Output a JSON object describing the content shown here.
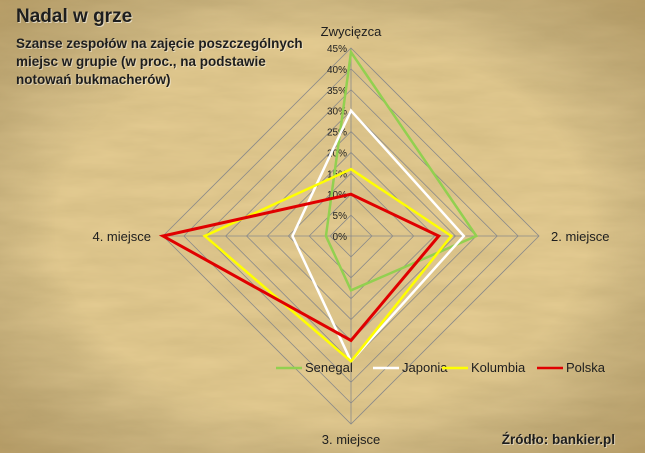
{
  "title": "Nadal w grze",
  "subtitle": "Szanse zespołów na zajęcie poszczególnych miejsc w grupie (w proc., na podstawie notowań bukmacherów)",
  "source": "Źródło: bankier.pl",
  "chart_data": {
    "type": "radar",
    "axes": [
      "Zwycięzca",
      "2. miejsce",
      "3. miejsce",
      "4. miejsce"
    ],
    "ticks": [
      "0%",
      "5%",
      "10%",
      "15%",
      "20%",
      "25%",
      "30%",
      "35%",
      "40%",
      "45%"
    ],
    "rmax": 45,
    "grid": true,
    "legend_position": "bottom",
    "series": [
      {
        "name": "Senegal",
        "color": "#92d050",
        "values": [
          44,
          30,
          13,
          6
        ]
      },
      {
        "name": "Japonia",
        "color": "#ffffff",
        "values": [
          30,
          27,
          30,
          14
        ]
      },
      {
        "name": "Kolumbia",
        "color": "#ffff00",
        "values": [
          16,
          24,
          30,
          35
        ]
      },
      {
        "name": "Polska",
        "color": "#e00000",
        "values": [
          10,
          21,
          25,
          45
        ]
      }
    ]
  }
}
